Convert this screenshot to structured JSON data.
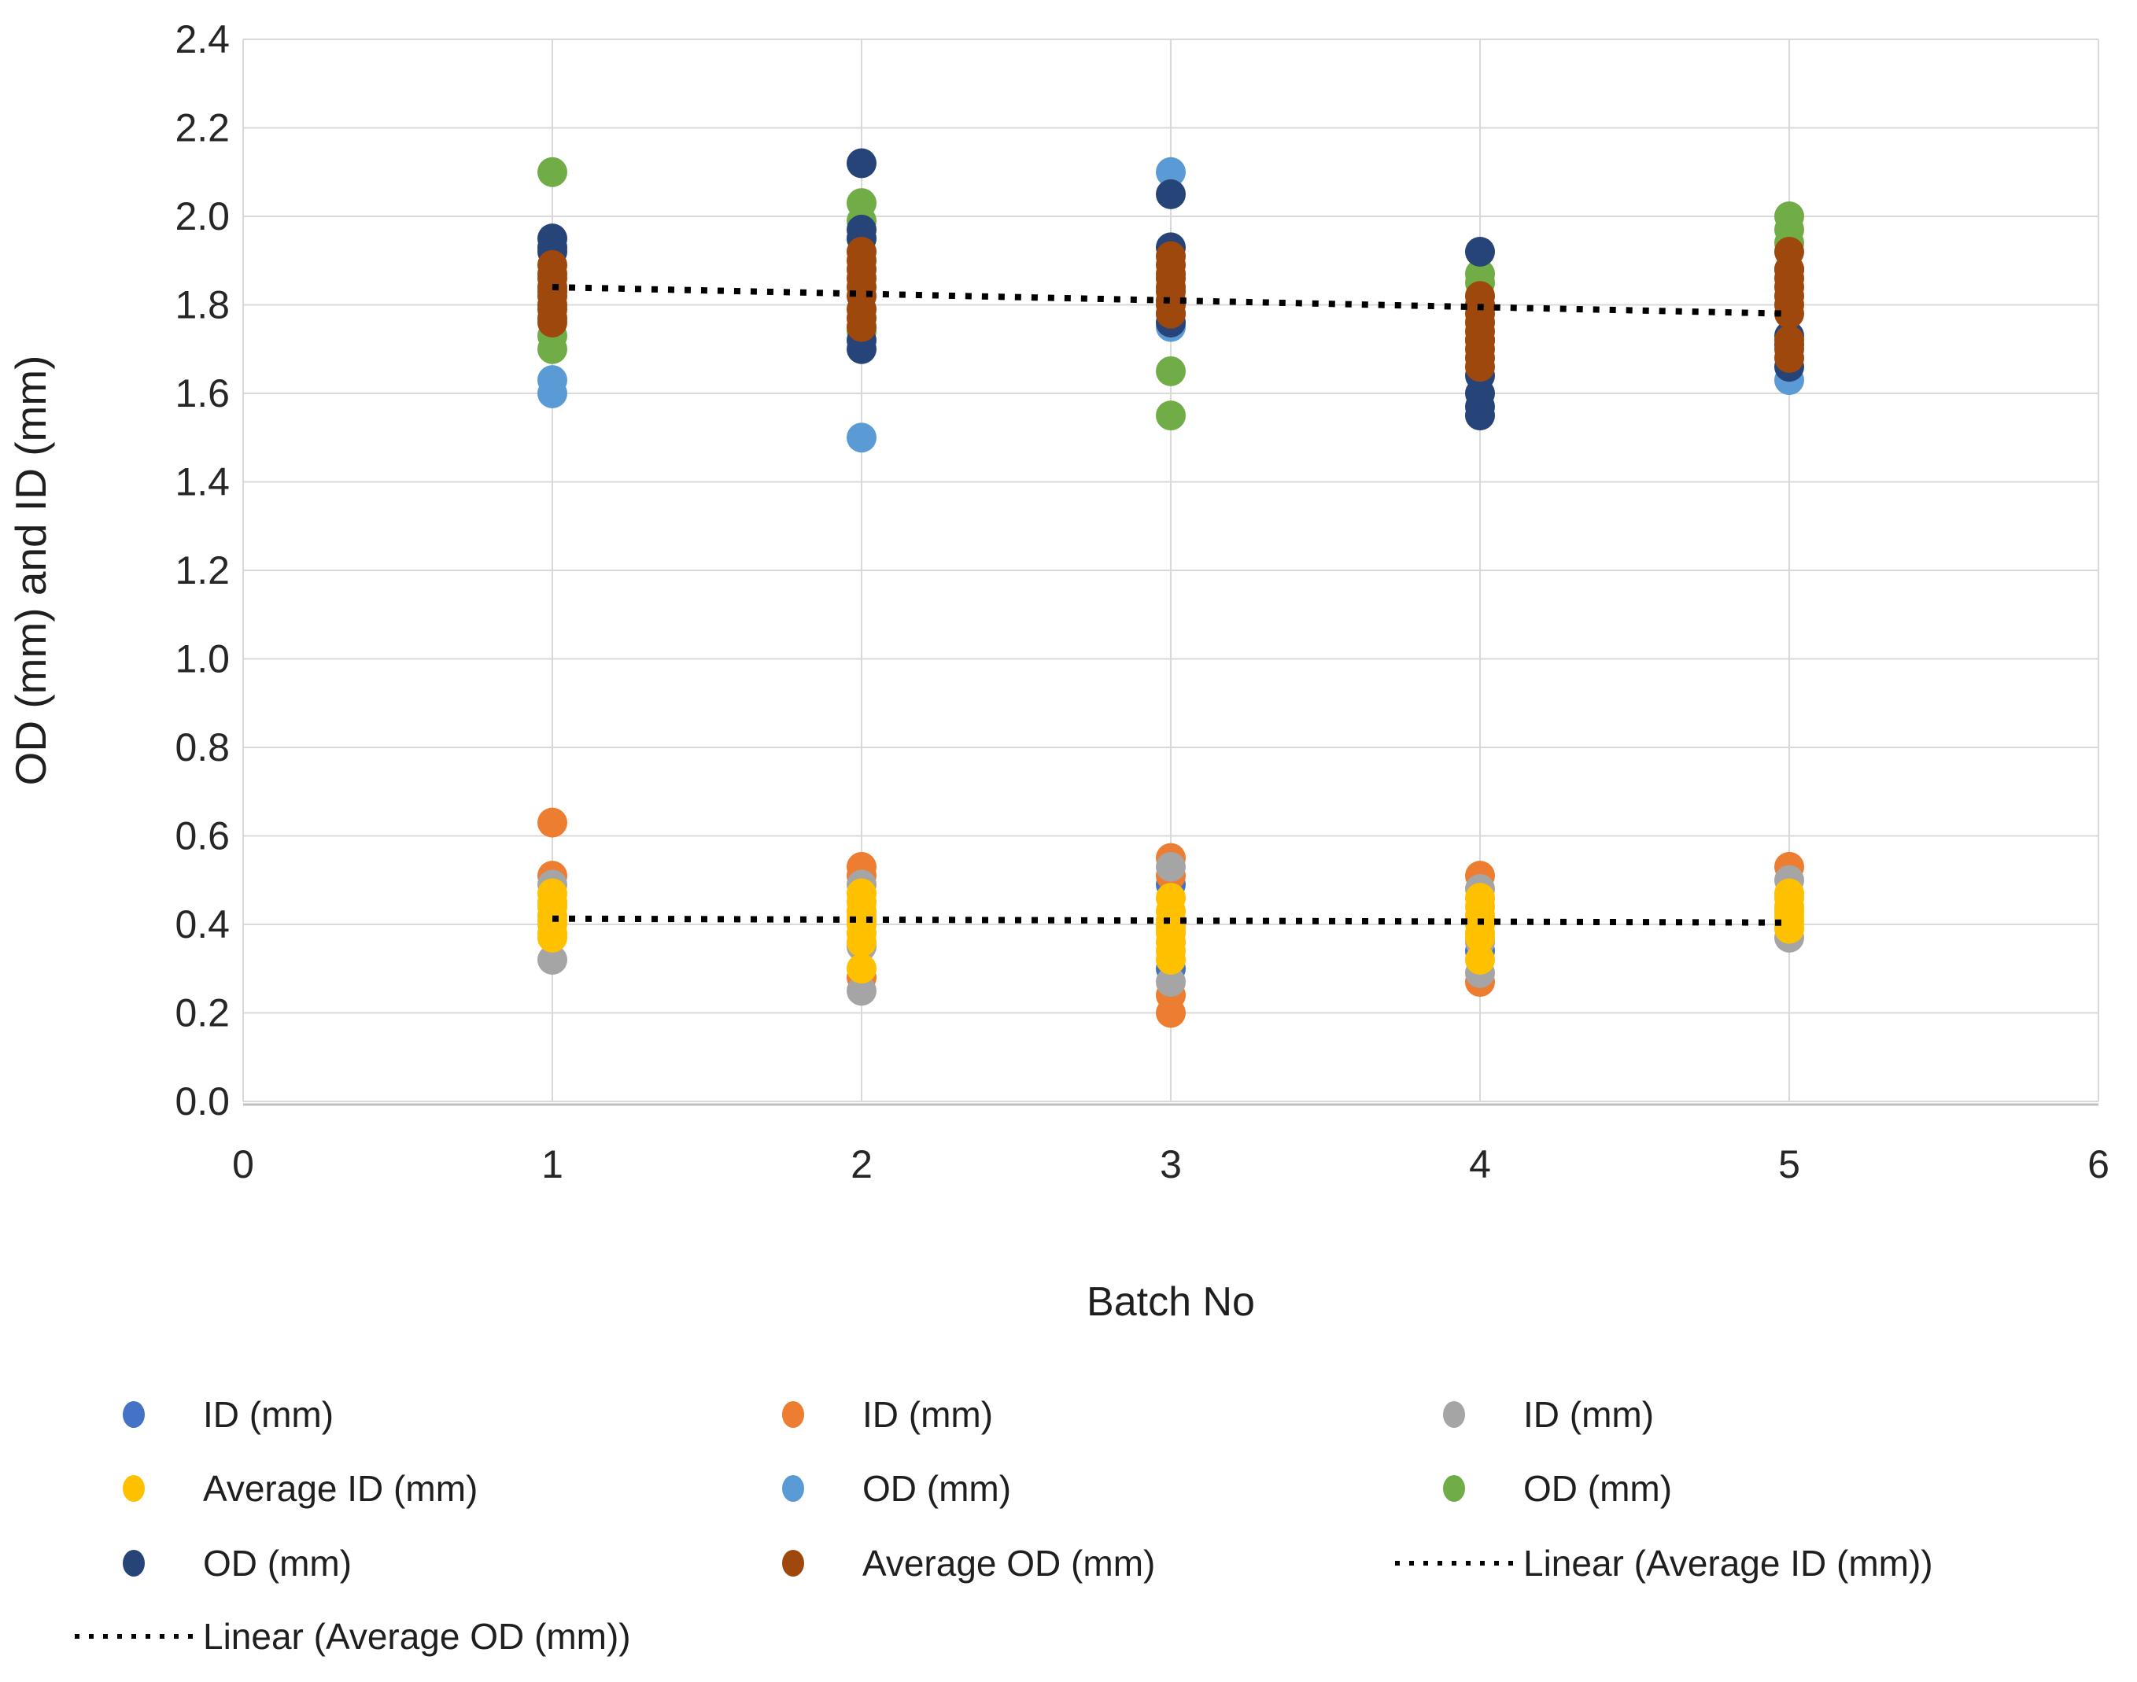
{
  "chart_data": {
    "type": "scatter",
    "title": "",
    "xlabel": "Batch No",
    "ylabel": "OD (mm) and ID (mm)",
    "xlim": [
      0,
      6
    ],
    "ylim": [
      0.0,
      2.4
    ],
    "x_ticks": [
      "0",
      "1",
      "2",
      "3",
      "4",
      "5",
      "6"
    ],
    "y_ticks": [
      "0.0",
      "0.2",
      "0.4",
      "0.6",
      "0.8",
      "1.0",
      "1.2",
      "1.4",
      "1.6",
      "1.8",
      "2.0",
      "2.2",
      "2.4"
    ],
    "grid": true,
    "series": [
      {
        "name": "ID (mm)",
        "color": "#4472C4",
        "points": [
          [
            3,
            0.49
          ],
          [
            3,
            0.3
          ],
          [
            4,
            0.34
          ]
        ]
      },
      {
        "name": "ID (mm)",
        "color": "#ED7D31",
        "points": [
          [
            1,
            0.63
          ],
          [
            1,
            0.51
          ],
          [
            2,
            0.53
          ],
          [
            2,
            0.51
          ],
          [
            2,
            0.28
          ],
          [
            3,
            0.55
          ],
          [
            3,
            0.51
          ],
          [
            3,
            0.24
          ],
          [
            3,
            0.2
          ],
          [
            4,
            0.51
          ],
          [
            4,
            0.27
          ],
          [
            5,
            0.53
          ]
        ]
      },
      {
        "name": "ID (mm)",
        "color": "#A5A5A5",
        "points": [
          [
            1,
            0.49
          ],
          [
            1,
            0.32
          ],
          [
            2,
            0.49
          ],
          [
            2,
            0.35
          ],
          [
            2,
            0.25
          ],
          [
            3,
            0.53
          ],
          [
            3,
            0.27
          ],
          [
            4,
            0.48
          ],
          [
            4,
            0.36
          ],
          [
            4,
            0.29
          ],
          [
            5,
            0.5
          ],
          [
            5,
            0.37
          ]
        ]
      },
      {
        "name": "Average ID (mm)",
        "color": "#FFC000",
        "points": [
          [
            1,
            0.47
          ],
          [
            1,
            0.45
          ],
          [
            1,
            0.44
          ],
          [
            1,
            0.42
          ],
          [
            1,
            0.41
          ],
          [
            1,
            0.4
          ],
          [
            1,
            0.38
          ],
          [
            1,
            0.37
          ],
          [
            2,
            0.47
          ],
          [
            2,
            0.45
          ],
          [
            2,
            0.43
          ],
          [
            2,
            0.42
          ],
          [
            2,
            0.41
          ],
          [
            2,
            0.4
          ],
          [
            2,
            0.38
          ],
          [
            2,
            0.36
          ],
          [
            2,
            0.3
          ],
          [
            3,
            0.46
          ],
          [
            3,
            0.43
          ],
          [
            3,
            0.41
          ],
          [
            3,
            0.4
          ],
          [
            3,
            0.39
          ],
          [
            3,
            0.38
          ],
          [
            3,
            0.36
          ],
          [
            3,
            0.34
          ],
          [
            3,
            0.32
          ],
          [
            4,
            0.46
          ],
          [
            4,
            0.44
          ],
          [
            4,
            0.42
          ],
          [
            4,
            0.41
          ],
          [
            4,
            0.4
          ],
          [
            4,
            0.38
          ],
          [
            4,
            0.37
          ],
          [
            4,
            0.32
          ],
          [
            5,
            0.47
          ],
          [
            5,
            0.46
          ],
          [
            5,
            0.44
          ],
          [
            5,
            0.43
          ],
          [
            5,
            0.42
          ],
          [
            5,
            0.41
          ],
          [
            5,
            0.4
          ],
          [
            5,
            0.39
          ]
        ]
      },
      {
        "name": "OD (mm)",
        "color": "#5B9BD5",
        "points": [
          [
            1,
            1.63
          ],
          [
            1,
            1.6
          ],
          [
            2,
            1.5
          ],
          [
            3,
            2.1
          ],
          [
            3,
            1.78
          ],
          [
            3,
            1.75
          ],
          [
            5,
            1.63
          ]
        ]
      },
      {
        "name": "OD (mm)",
        "color": "#70AD47",
        "points": [
          [
            1,
            2.1
          ],
          [
            1,
            1.73
          ],
          [
            1,
            1.7
          ],
          [
            2,
            2.03
          ],
          [
            2,
            1.99
          ],
          [
            2,
            1.95
          ],
          [
            2,
            1.74
          ],
          [
            3,
            1.65
          ],
          [
            3,
            1.55
          ],
          [
            4,
            1.87
          ],
          [
            4,
            1.85
          ],
          [
            5,
            2.0
          ],
          [
            5,
            1.97
          ],
          [
            5,
            1.94
          ]
        ]
      },
      {
        "name": "OD (mm)",
        "color": "#264478",
        "points": [
          [
            1,
            1.95
          ],
          [
            1,
            1.93
          ],
          [
            1,
            1.92
          ],
          [
            2,
            2.12
          ],
          [
            2,
            1.97
          ],
          [
            2,
            1.95
          ],
          [
            2,
            1.72
          ],
          [
            2,
            1.7
          ],
          [
            3,
            2.05
          ],
          [
            3,
            1.93
          ],
          [
            3,
            1.76
          ],
          [
            4,
            1.92
          ],
          [
            4,
            1.72
          ],
          [
            4,
            1.64
          ],
          [
            4,
            1.6
          ],
          [
            4,
            1.57
          ],
          [
            4,
            1.55
          ],
          [
            5,
            1.88
          ],
          [
            5,
            1.73
          ],
          [
            5,
            1.71
          ],
          [
            5,
            1.66
          ]
        ]
      },
      {
        "name": "Average OD (mm)",
        "color": "#9E480E",
        "points": [
          [
            1,
            1.89
          ],
          [
            1,
            1.87
          ],
          [
            1,
            1.86
          ],
          [
            1,
            1.84
          ],
          [
            1,
            1.83
          ],
          [
            1,
            1.82
          ],
          [
            1,
            1.8
          ],
          [
            1,
            1.79
          ],
          [
            1,
            1.77
          ],
          [
            1,
            1.76
          ],
          [
            2,
            1.92
          ],
          [
            2,
            1.9
          ],
          [
            2,
            1.88
          ],
          [
            2,
            1.86
          ],
          [
            2,
            1.84
          ],
          [
            2,
            1.82
          ],
          [
            2,
            1.79
          ],
          [
            2,
            1.77
          ],
          [
            2,
            1.75
          ],
          [
            3,
            1.91
          ],
          [
            3,
            1.89
          ],
          [
            3,
            1.87
          ],
          [
            3,
            1.86
          ],
          [
            3,
            1.84
          ],
          [
            3,
            1.83
          ],
          [
            3,
            1.81
          ],
          [
            3,
            1.8
          ],
          [
            3,
            1.78
          ],
          [
            4,
            1.82
          ],
          [
            4,
            1.8
          ],
          [
            4,
            1.78
          ],
          [
            4,
            1.76
          ],
          [
            4,
            1.74
          ],
          [
            4,
            1.72
          ],
          [
            4,
            1.7
          ],
          [
            4,
            1.68
          ],
          [
            4,
            1.66
          ],
          [
            5,
            1.92
          ],
          [
            5,
            1.88
          ],
          [
            5,
            1.86
          ],
          [
            5,
            1.84
          ],
          [
            5,
            1.82
          ],
          [
            5,
            1.8
          ],
          [
            5,
            1.78
          ],
          [
            5,
            1.72
          ],
          [
            5,
            1.7
          ],
          [
            5,
            1.68
          ]
        ]
      }
    ],
    "trendlines": [
      {
        "name": "Linear (Average OD (mm))",
        "x1": 1,
        "y1": 1.84,
        "x2": 5,
        "y2": 1.78
      },
      {
        "name": "Linear (Average ID (mm))",
        "x1": 1,
        "y1": 0.413,
        "x2": 5,
        "y2": 0.404
      }
    ],
    "legend_position": "bottom"
  },
  "legend": {
    "items": [
      {
        "row": 0,
        "col": 0,
        "marker": "dot",
        "color": "#4472C4",
        "label": "ID (mm)"
      },
      {
        "row": 0,
        "col": 1,
        "marker": "dot",
        "color": "#ED7D31",
        "label": "ID (mm)"
      },
      {
        "row": 0,
        "col": 2,
        "marker": "dot",
        "color": "#A5A5A5",
        "label": "ID (mm)"
      },
      {
        "row": 1,
        "col": 0,
        "marker": "dot",
        "color": "#FFC000",
        "label": "Average ID (mm)"
      },
      {
        "row": 1,
        "col": 1,
        "marker": "dot",
        "color": "#5B9BD5",
        "label": "OD (mm)"
      },
      {
        "row": 1,
        "col": 2,
        "marker": "dot",
        "color": "#70AD47",
        "label": "OD (mm)"
      },
      {
        "row": 2,
        "col": 0,
        "marker": "dot",
        "color": "#264478",
        "label": "OD (mm)"
      },
      {
        "row": 2,
        "col": 1,
        "marker": "dot",
        "color": "#9E480E",
        "label": "Average OD (mm)"
      },
      {
        "row": 2,
        "col": 2,
        "marker": "dash",
        "color": "#000000",
        "label": "Linear (Average ID (mm))"
      },
      {
        "row": 3,
        "col": 0,
        "marker": "dash",
        "color": "#000000",
        "label": "Linear (Average OD (mm))"
      }
    ]
  }
}
